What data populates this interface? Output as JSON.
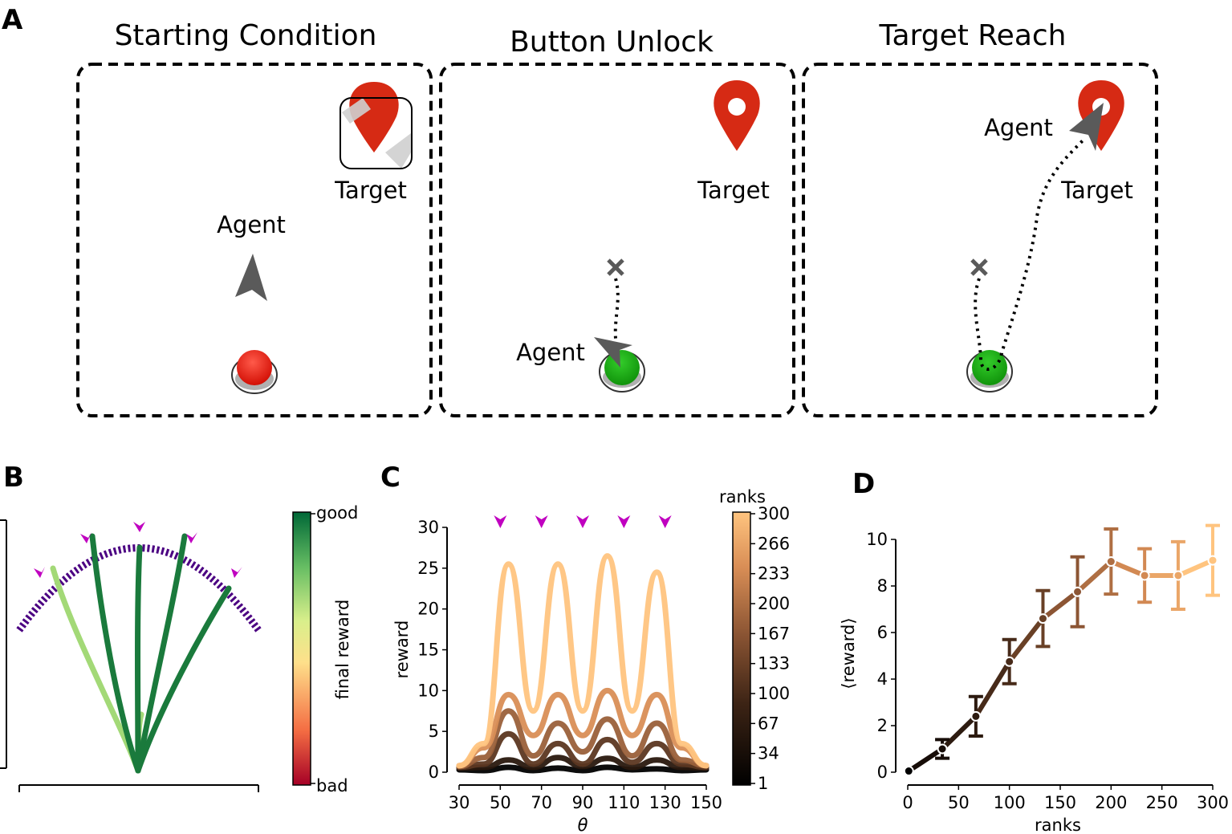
{
  "panel_labels": {
    "a": "A",
    "b": "B",
    "c": "C",
    "d": "D"
  },
  "panel_a": {
    "titles": [
      "Starting Condition",
      "Button Unlock",
      "Target Reach"
    ],
    "agent_label": "Agent",
    "target_label": "Target",
    "colors": {
      "target": "#d62a14",
      "button_red": "#e8140a",
      "button_green": "#15a80f",
      "agent": "#5a5a5a"
    },
    "icons": [
      "arrowhead-agent-icon",
      "map-pin-icon",
      "locked-box-icon",
      "push-button-icon",
      "cross-mark-icon"
    ]
  },
  "panel_b": {
    "colorbar_top": "good",
    "colorbar_bottom": "bad",
    "colorbar_label": "final reward",
    "colormap": [
      "#a50026",
      "#f46d43",
      "#fee08b",
      "#d9ef8b",
      "#66bd63",
      "#006837"
    ],
    "arc_color": "#4b0082",
    "marker_color": "#c000c0"
  },
  "chart_data": [
    {
      "type": "line",
      "panel": "C",
      "xlabel": "θ",
      "ylabel": "reward",
      "xlim": [
        30,
        150
      ],
      "ylim": [
        0,
        30
      ],
      "x_ticks": [
        30,
        50,
        70,
        90,
        110,
        130,
        150
      ],
      "y_ticks": [
        0,
        5,
        10,
        15,
        20,
        25,
        30
      ],
      "target_markers_x": [
        50,
        70,
        90,
        110,
        130
      ],
      "colorbar_title": "ranks",
      "colorbar_ticks": [
        1,
        34,
        67,
        100,
        133,
        167,
        200,
        233,
        266,
        300
      ],
      "series": [
        {
          "values": [
            0.3,
            0.2,
            0.6,
            0.2,
            0.5,
            0.2,
            0.6,
            0.3,
            0.4,
            0.2,
            0.3
          ]
        },
        {
          "values": [
            0.5,
            0.6,
            1.5,
            0.6,
            1.8,
            0.7,
            1.7,
            0.6,
            1.5,
            0.6,
            0.5
          ]
        },
        {
          "values": [
            0.6,
            1.0,
            4.7,
            1.0,
            3.5,
            1.0,
            4.0,
            1.2,
            3.5,
            1.0,
            0.6
          ]
        },
        {
          "values": [
            0.7,
            1.8,
            7.5,
            2.0,
            6.0,
            2.5,
            6.5,
            2.0,
            6.0,
            1.5,
            0.8
          ]
        },
        {
          "values": [
            0.8,
            3.0,
            9.5,
            4.5,
            9.5,
            4.5,
            10.0,
            4.5,
            9.5,
            3.0,
            0.8
          ]
        },
        {
          "values": [
            0.8,
            3.5,
            25.5,
            7.5,
            25.5,
            7.5,
            26.5,
            7.5,
            24.5,
            3.5,
            0.8
          ],
          "peaks": true
        }
      ]
    },
    {
      "type": "line",
      "panel": "D",
      "xlabel": "ranks",
      "ylabel": "⟨reward⟩",
      "xlim": [
        0,
        300
      ],
      "ylim": [
        0,
        10
      ],
      "x_ticks": [
        0,
        50,
        100,
        150,
        200,
        250,
        300
      ],
      "y_ticks": [
        0,
        2,
        4,
        6,
        8,
        10
      ],
      "x": [
        1,
        34,
        67,
        100,
        133,
        167,
        200,
        233,
        266,
        300
      ],
      "y": [
        0.05,
        1.0,
        2.4,
        4.75,
        6.6,
        7.75,
        9.05,
        8.45,
        8.45,
        9.1
      ],
      "err": [
        0.0,
        0.4,
        0.85,
        0.95,
        1.2,
        1.5,
        1.4,
        1.15,
        1.45,
        1.5
      ]
    }
  ]
}
